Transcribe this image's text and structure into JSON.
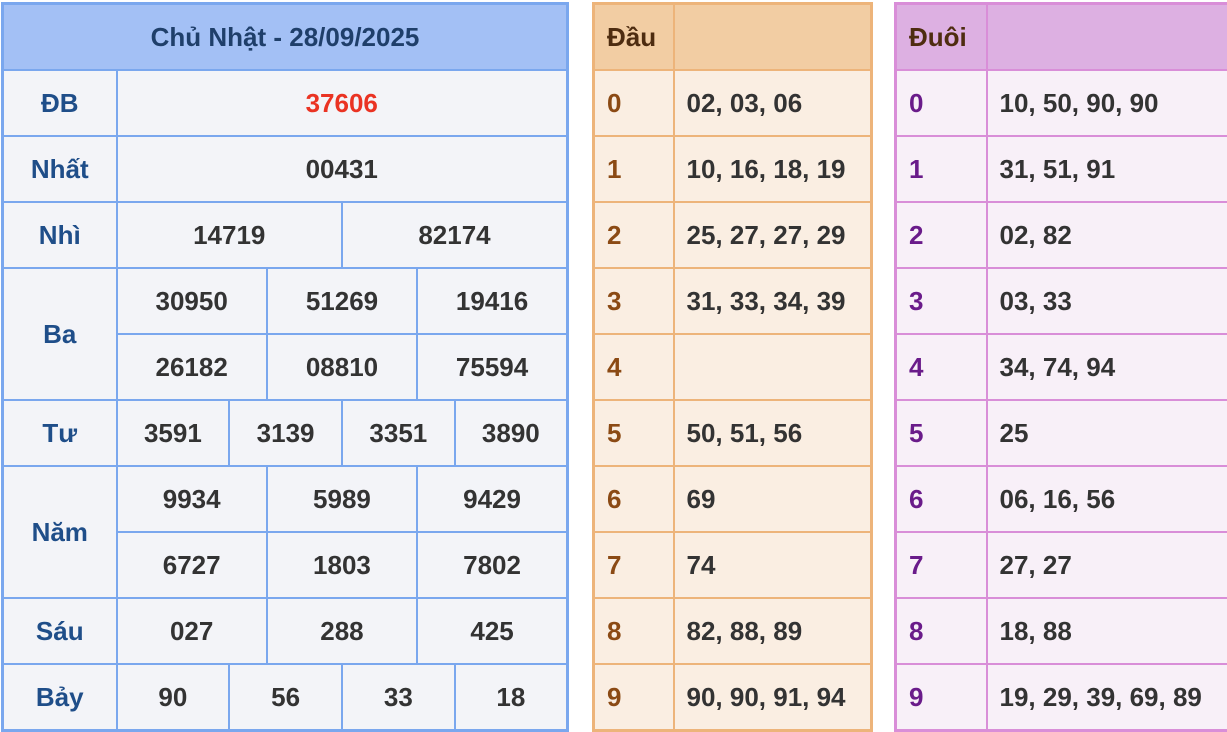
{
  "results": {
    "title": "Chủ Nhật - 28/09/2025",
    "rows": [
      {
        "label": "ĐB",
        "values": [
          "37606"
        ]
      },
      {
        "label": "Nhất",
        "values": [
          "00431"
        ]
      },
      {
        "label": "Nhì",
        "values": [
          "14719",
          "82174"
        ]
      },
      {
        "label": "Ba",
        "values": [
          "30950",
          "51269",
          "19416",
          "26182",
          "08810",
          "75594"
        ]
      },
      {
        "label": "Tư",
        "values": [
          "3591",
          "3139",
          "3351",
          "3890"
        ]
      },
      {
        "label": "Năm",
        "values": [
          "9934",
          "5989",
          "9429",
          "6727",
          "1803",
          "7802"
        ]
      },
      {
        "label": "Sáu",
        "values": [
          "027",
          "288",
          "425"
        ]
      },
      {
        "label": "Bảy",
        "values": [
          "90",
          "56",
          "33",
          "18"
        ]
      }
    ],
    "special_color": "#ea3323"
  },
  "dau": {
    "header": "Đầu",
    "rows": [
      {
        "k": "0",
        "v": "02, 03, 06"
      },
      {
        "k": "1",
        "v": "10, 16, 18, 19"
      },
      {
        "k": "2",
        "v": "25, 27, 27, 29"
      },
      {
        "k": "3",
        "v": "31, 33, 34, 39"
      },
      {
        "k": "4",
        "v": ""
      },
      {
        "k": "5",
        "v": "50, 51, 56"
      },
      {
        "k": "6",
        "v": "69"
      },
      {
        "k": "7",
        "v": "74"
      },
      {
        "k": "8",
        "v": "82, 88, 89"
      },
      {
        "k": "9",
        "v": "90, 90, 91, 94"
      }
    ]
  },
  "duoi": {
    "header": "Đuôi",
    "rows": [
      {
        "k": "0",
        "v": "10, 50, 90, 90"
      },
      {
        "k": "1",
        "v": "31, 51, 91"
      },
      {
        "k": "2",
        "v": "02, 82"
      },
      {
        "k": "3",
        "v": "03, 33"
      },
      {
        "k": "4",
        "v": "34, 74, 94"
      },
      {
        "k": "5",
        "v": "25"
      },
      {
        "k": "6",
        "v": "06, 16, 56"
      },
      {
        "k": "7",
        "v": "27, 27"
      },
      {
        "k": "8",
        "v": "18, 88"
      },
      {
        "k": "9",
        "v": "19, 29, 39, 69, 89"
      }
    ]
  }
}
